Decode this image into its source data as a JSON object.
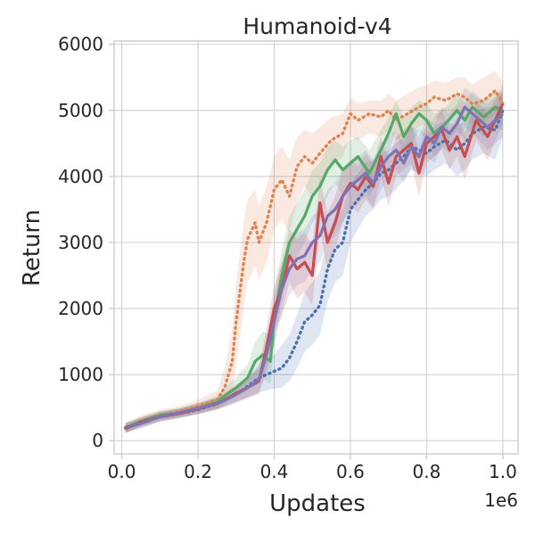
{
  "chart_data": {
    "type": "line",
    "title": "Humanoid-v4",
    "xlabel": "Updates",
    "ylabel": "Return",
    "x_scale_label": "1e6",
    "xlim": [
      -0.02,
      1.04
    ],
    "ylim": [
      -200,
      6050
    ],
    "xticks": [
      0.0,
      0.2,
      0.4,
      0.6,
      0.8,
      1.0
    ],
    "xtick_labels": [
      "0.0",
      "0.2",
      "0.4",
      "0.6",
      "0.8",
      "1.0"
    ],
    "yticks": [
      0,
      1000,
      2000,
      3000,
      4000,
      5000,
      6000
    ],
    "ytick_labels": [
      "0",
      "1000",
      "2000",
      "3000",
      "4000",
      "5000",
      "6000"
    ],
    "grid": true,
    "legend": false,
    "series": [
      {
        "color": "#dd8452",
        "linestyle": "dotted",
        "x": [
          0.01,
          0.05,
          0.1,
          0.15,
          0.2,
          0.25,
          0.27,
          0.29,
          0.3,
          0.32,
          0.33,
          0.35,
          0.36,
          0.38,
          0.4,
          0.42,
          0.44,
          0.46,
          0.48,
          0.5,
          0.52,
          0.55,
          0.58,
          0.6,
          0.62,
          0.65,
          0.68,
          0.7,
          0.72,
          0.75,
          0.78,
          0.8,
          0.82,
          0.85,
          0.88,
          0.9,
          0.92,
          0.95,
          0.98,
          1.0
        ],
        "y": [
          180,
          300,
          390,
          440,
          520,
          620,
          800,
          1200,
          1800,
          2700,
          3050,
          3300,
          3000,
          3300,
          3800,
          3950,
          3700,
          4150,
          4300,
          4200,
          4350,
          4550,
          4650,
          4950,
          4850,
          4950,
          4900,
          5000,
          4850,
          4950,
          5050,
          5100,
          5200,
          5150,
          5250,
          5200,
          5100,
          5150,
          5300,
          5100
        ],
        "upper": [
          260,
          380,
          470,
          520,
          620,
          760,
          1100,
          1700,
          2400,
          3300,
          3650,
          3800,
          3550,
          3850,
          4300,
          4450,
          4250,
          4600,
          4700,
          4650,
          4750,
          4900,
          4950,
          5200,
          5100,
          5150,
          5150,
          5250,
          5150,
          5250,
          5350,
          5380,
          5450,
          5420,
          5500,
          5500,
          5400,
          5500,
          5600,
          5450
        ],
        "lower": [
          110,
          230,
          320,
          370,
          440,
          500,
          560,
          750,
          1150,
          2000,
          2400,
          2650,
          2450,
          2700,
          3200,
          3350,
          3150,
          3600,
          3850,
          3700,
          3900,
          4150,
          4300,
          4600,
          4550,
          4650,
          4600,
          4700,
          4550,
          4650,
          4750,
          4800,
          4900,
          4850,
          4950,
          4900,
          4800,
          4800,
          4950,
          4700
        ]
      },
      {
        "color": "#4c72b0",
        "linestyle": "dotted",
        "x": [
          0.01,
          0.05,
          0.1,
          0.15,
          0.2,
          0.25,
          0.28,
          0.3,
          0.33,
          0.36,
          0.38,
          0.4,
          0.42,
          0.44,
          0.46,
          0.48,
          0.5,
          0.52,
          0.54,
          0.56,
          0.58,
          0.6,
          0.62,
          0.64,
          0.66,
          0.68,
          0.7,
          0.72,
          0.74,
          0.76,
          0.78,
          0.8,
          0.82,
          0.85,
          0.88,
          0.9,
          0.92,
          0.95,
          0.98,
          1.0
        ],
        "y": [
          200,
          270,
          360,
          410,
          470,
          560,
          640,
          700,
          820,
          950,
          1000,
          1050,
          1100,
          1250,
          1500,
          1800,
          1900,
          2050,
          2600,
          2900,
          3000,
          3500,
          3650,
          3800,
          3900,
          4050,
          4100,
          4200,
          4300,
          4450,
          4400,
          4350,
          4450,
          4550,
          4400,
          4500,
          4650,
          4750,
          4700,
          5000
        ],
        "upper": [
          280,
          340,
          430,
          480,
          540,
          640,
          740,
          820,
          960,
          1150,
          1250,
          1300,
          1450,
          1600,
          1900,
          2250,
          2400,
          2550,
          3100,
          3400,
          3500,
          3900,
          4050,
          4200,
          4250,
          4350,
          4400,
          4500,
          4600,
          4750,
          4700,
          4650,
          4750,
          4850,
          4750,
          4850,
          4950,
          5050,
          5050,
          5300
        ],
        "lower": [
          120,
          190,
          290,
          340,
          400,
          480,
          540,
          580,
          660,
          720,
          760,
          790,
          800,
          900,
          1100,
          1350,
          1450,
          1600,
          2100,
          2400,
          2500,
          3000,
          3200,
          3400,
          3500,
          3650,
          3700,
          3800,
          3950,
          4100,
          4050,
          4000,
          4100,
          4200,
          4000,
          4100,
          4250,
          4350,
          4250,
          4600
        ]
      },
      {
        "color": "#55a868",
        "linestyle": "solid",
        "x": [
          0.01,
          0.05,
          0.1,
          0.15,
          0.2,
          0.25,
          0.28,
          0.3,
          0.33,
          0.35,
          0.37,
          0.39,
          0.4,
          0.42,
          0.44,
          0.46,
          0.48,
          0.5,
          0.52,
          0.54,
          0.56,
          0.58,
          0.6,
          0.62,
          0.65,
          0.68,
          0.7,
          0.72,
          0.74,
          0.76,
          0.78,
          0.8,
          0.82,
          0.85,
          0.88,
          0.9,
          0.92,
          0.95,
          0.98,
          1.0
        ],
        "y": [
          200,
          290,
          380,
          420,
          490,
          580,
          720,
          800,
          950,
          1200,
          1300,
          1200,
          1850,
          2500,
          3000,
          3200,
          3400,
          3700,
          3850,
          4100,
          4250,
          4100,
          4200,
          4300,
          4050,
          4400,
          4650,
          4950,
          4600,
          4800,
          4950,
          4850,
          4650,
          4800,
          5000,
          4850,
          5050,
          4900,
          5050,
          5000
        ],
        "upper": [
          270,
          360,
          450,
          490,
          570,
          680,
          850,
          960,
          1150,
          1500,
          1650,
          1600,
          2250,
          2900,
          3400,
          3600,
          3800,
          4100,
          4200,
          4450,
          4550,
          4450,
          4550,
          4600,
          4400,
          4700,
          4900,
          5150,
          4900,
          5050,
          5150,
          5100,
          4950,
          5050,
          5250,
          5100,
          5300,
          5150,
          5300,
          5250
        ],
        "lower": [
          130,
          220,
          310,
          350,
          410,
          480,
          590,
          650,
          760,
          900,
          950,
          850,
          1450,
          2100,
          2600,
          2800,
          3000,
          3300,
          3450,
          3700,
          3900,
          3700,
          3800,
          3950,
          3700,
          4050,
          4350,
          4700,
          4250,
          4500,
          4700,
          4550,
          4300,
          4500,
          4700,
          4550,
          4750,
          4600,
          4750,
          4700
        ]
      },
      {
        "color": "#c44e52",
        "linestyle": "solid",
        "x": [
          0.01,
          0.05,
          0.1,
          0.15,
          0.2,
          0.25,
          0.28,
          0.3,
          0.33,
          0.36,
          0.38,
          0.4,
          0.42,
          0.44,
          0.46,
          0.48,
          0.5,
          0.52,
          0.54,
          0.56,
          0.58,
          0.6,
          0.62,
          0.64,
          0.66,
          0.68,
          0.7,
          0.72,
          0.74,
          0.76,
          0.78,
          0.8,
          0.82,
          0.84,
          0.86,
          0.88,
          0.9,
          0.93,
          0.96,
          1.0
        ],
        "y": [
          180,
          280,
          360,
          410,
          480,
          560,
          650,
          720,
          800,
          900,
          1400,
          2000,
          2300,
          2800,
          2600,
          2700,
          2500,
          3600,
          3000,
          3300,
          3700,
          3900,
          3800,
          4000,
          3850,
          4300,
          3900,
          4300,
          4400,
          4500,
          4050,
          4500,
          4600,
          4700,
          4400,
          4600,
          4300,
          4850,
          4600,
          5100
        ],
        "upper": [
          250,
          350,
          430,
          480,
          560,
          650,
          760,
          850,
          960,
          1100,
          1700,
          2350,
          2700,
          3200,
          3050,
          3150,
          2950,
          4000,
          3450,
          3700,
          4100,
          4250,
          4150,
          4350,
          4200,
          4600,
          4250,
          4600,
          4700,
          4800,
          4400,
          4800,
          4900,
          5000,
          4700,
          4900,
          4650,
          5150,
          4950,
          5400
        ],
        "lower": [
          110,
          210,
          290,
          340,
          400,
          470,
          540,
          590,
          640,
          700,
          1100,
          1650,
          1900,
          2400,
          2150,
          2250,
          2050,
          3200,
          2550,
          2900,
          3300,
          3550,
          3450,
          3650,
          3500,
          4000,
          3550,
          4000,
          4100,
          4200,
          3700,
          4200,
          4300,
          4400,
          4100,
          4300,
          3950,
          4550,
          4250,
          4800
        ]
      },
      {
        "color": "#8172b3",
        "linestyle": "solid",
        "x": [
          0.01,
          0.05,
          0.1,
          0.15,
          0.2,
          0.25,
          0.28,
          0.3,
          0.33,
          0.36,
          0.38,
          0.4,
          0.42,
          0.44,
          0.46,
          0.48,
          0.5,
          0.52,
          0.54,
          0.56,
          0.58,
          0.6,
          0.62,
          0.64,
          0.66,
          0.68,
          0.7,
          0.72,
          0.74,
          0.76,
          0.78,
          0.8,
          0.82,
          0.84,
          0.86,
          0.88,
          0.9,
          0.93,
          0.96,
          1.0
        ],
        "y": [
          200,
          260,
          360,
          420,
          490,
          560,
          640,
          700,
          800,
          920,
          1300,
          1800,
          2300,
          2600,
          2750,
          2800,
          3000,
          3100,
          3400,
          3500,
          3700,
          3850,
          3950,
          4050,
          3900,
          4150,
          4300,
          4400,
          4200,
          4450,
          4300,
          4600,
          4500,
          4750,
          4650,
          4800,
          5050,
          4900,
          4750,
          4950
        ],
        "upper": [
          270,
          330,
          430,
          490,
          570,
          650,
          750,
          830,
          950,
          1100,
          1600,
          2150,
          2700,
          3000,
          3150,
          3200,
          3400,
          3500,
          3800,
          3900,
          4100,
          4200,
          4300,
          4400,
          4250,
          4500,
          4600,
          4700,
          4500,
          4750,
          4600,
          4900,
          4800,
          5050,
          4950,
          5100,
          5350,
          5200,
          5100,
          5300
        ],
        "lower": [
          130,
          190,
          290,
          350,
          410,
          470,
          530,
          570,
          650,
          740,
          1000,
          1450,
          1900,
          2200,
          2350,
          2400,
          2600,
          2700,
          3000,
          3100,
          3300,
          3500,
          3600,
          3700,
          3550,
          3800,
          4000,
          4100,
          3900,
          4150,
          4000,
          4300,
          4200,
          4450,
          4350,
          4500,
          4750,
          4600,
          4400,
          4600
        ]
      }
    ]
  }
}
